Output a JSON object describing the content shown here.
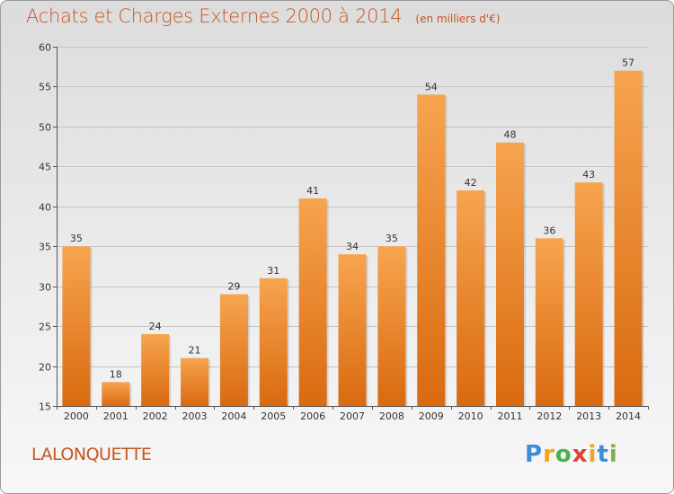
{
  "title": {
    "main": "Achats et Charges Externes 2000 à 2014",
    "sub": "(en milliers d'€)"
  },
  "commune": "LALONQUETTE",
  "logo": {
    "letters": [
      "P",
      "r",
      "o",
      "x",
      "i",
      "t",
      "i"
    ],
    "colors": [
      "#3b8ed9",
      "#f3a31c",
      "#4caf50",
      "#e2432f",
      "#f3a31c",
      "#3b8ed9",
      "#7cb342"
    ]
  },
  "colors": {
    "bar_light": "#f7a44f",
    "bar_dark": "#d96a10",
    "title": "#c8541e"
  },
  "chart_data": {
    "type": "bar",
    "categories": [
      "2000",
      "2001",
      "2002",
      "2003",
      "2004",
      "2005",
      "2006",
      "2007",
      "2008",
      "2009",
      "2010",
      "2011",
      "2012",
      "2013",
      "2014"
    ],
    "values": [
      35,
      18,
      24,
      21,
      29,
      31,
      41,
      34,
      35,
      54,
      42,
      48,
      36,
      43,
      57
    ],
    "ylim": [
      15,
      60
    ],
    "yticks": [
      15,
      20,
      25,
      30,
      35,
      40,
      45,
      50,
      55,
      60
    ],
    "grid": true
  }
}
